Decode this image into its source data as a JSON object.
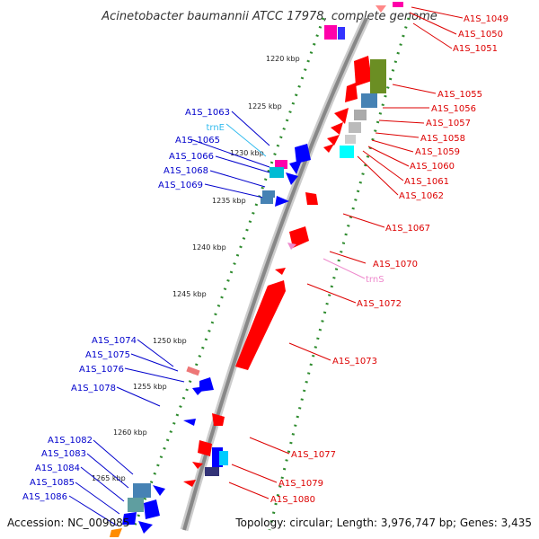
{
  "title": "Acinetobacter baumannii ATCC 17978, complete genome",
  "footer": {
    "accession": "Accession: NC_009085",
    "topology": "Topology: circular; Length: 3,976,747 bp; Genes: 3,435"
  },
  "scale_labels": [
    "1220 kbp",
    "1225 kbp",
    "1230 kbp",
    "1235 kbp",
    "1240 kbp",
    "1245 kbp",
    "1250 kbp",
    "1255 kbp",
    "1260 kbp",
    "1265 kbp"
  ],
  "colors": {
    "backbone": "#888888",
    "scale_dots": "#2e8b2e",
    "left_label": "#0000cc",
    "right_label": "#dd0000",
    "trna_left": "#33bbee",
    "trna_right": "#ee88cc"
  },
  "left_labels": [
    {
      "id": "a1s-1063",
      "text": "A1S_1063"
    },
    {
      "id": "trne",
      "text": "trnE",
      "trna": true
    },
    {
      "id": "a1s-1065",
      "text": "A1S_1065"
    },
    {
      "id": "a1s-1066",
      "text": "A1S_1066"
    },
    {
      "id": "a1s-1068",
      "text": "A1S_1068"
    },
    {
      "id": "a1s-1069",
      "text": "A1S_1069"
    },
    {
      "id": "a1s-1074",
      "text": "A1S_1074"
    },
    {
      "id": "a1s-1075",
      "text": "A1S_1075"
    },
    {
      "id": "a1s-1076",
      "text": "A1S_1076"
    },
    {
      "id": "a1s-1078",
      "text": "A1S_1078"
    },
    {
      "id": "a1s-1082",
      "text": "A1S_1082"
    },
    {
      "id": "a1s-1083",
      "text": "A1S_1083"
    },
    {
      "id": "a1s-1084",
      "text": "A1S_1084"
    },
    {
      "id": "a1s-1085",
      "text": "A1S_1085"
    },
    {
      "id": "a1s-1086",
      "text": "A1S_1086"
    }
  ],
  "right_labels": [
    {
      "id": "a1s-1049",
      "text": "A1S_1049"
    },
    {
      "id": "a1s-1050",
      "text": "A1S_1050"
    },
    {
      "id": "a1s-1051",
      "text": "A1S_1051"
    },
    {
      "id": "a1s-1055",
      "text": "A1S_1055"
    },
    {
      "id": "a1s-1056",
      "text": "A1S_1056"
    },
    {
      "id": "a1s-1057",
      "text": "A1S_1057"
    },
    {
      "id": "a1s-1058",
      "text": "A1S_1058"
    },
    {
      "id": "a1s-1059",
      "text": "A1S_1059"
    },
    {
      "id": "a1s-1060",
      "text": "A1S_1060"
    },
    {
      "id": "a1s-1061",
      "text": "A1S_1061"
    },
    {
      "id": "a1s-1062",
      "text": "A1S_1062"
    },
    {
      "id": "a1s-1067",
      "text": "A1S_1067"
    },
    {
      "id": "a1s-1070",
      "text": "A1S_1070"
    },
    {
      "id": "trns",
      "text": "trnS",
      "trna": true
    },
    {
      "id": "a1s-1072",
      "text": "A1S_1072"
    },
    {
      "id": "a1s-1073",
      "text": "A1S_1073"
    },
    {
      "id": "a1s-1077",
      "text": "A1S_1077"
    },
    {
      "id": "a1s-1079",
      "text": "A1S_1079"
    },
    {
      "id": "a1s-1080",
      "text": "A1S_1080"
    }
  ]
}
